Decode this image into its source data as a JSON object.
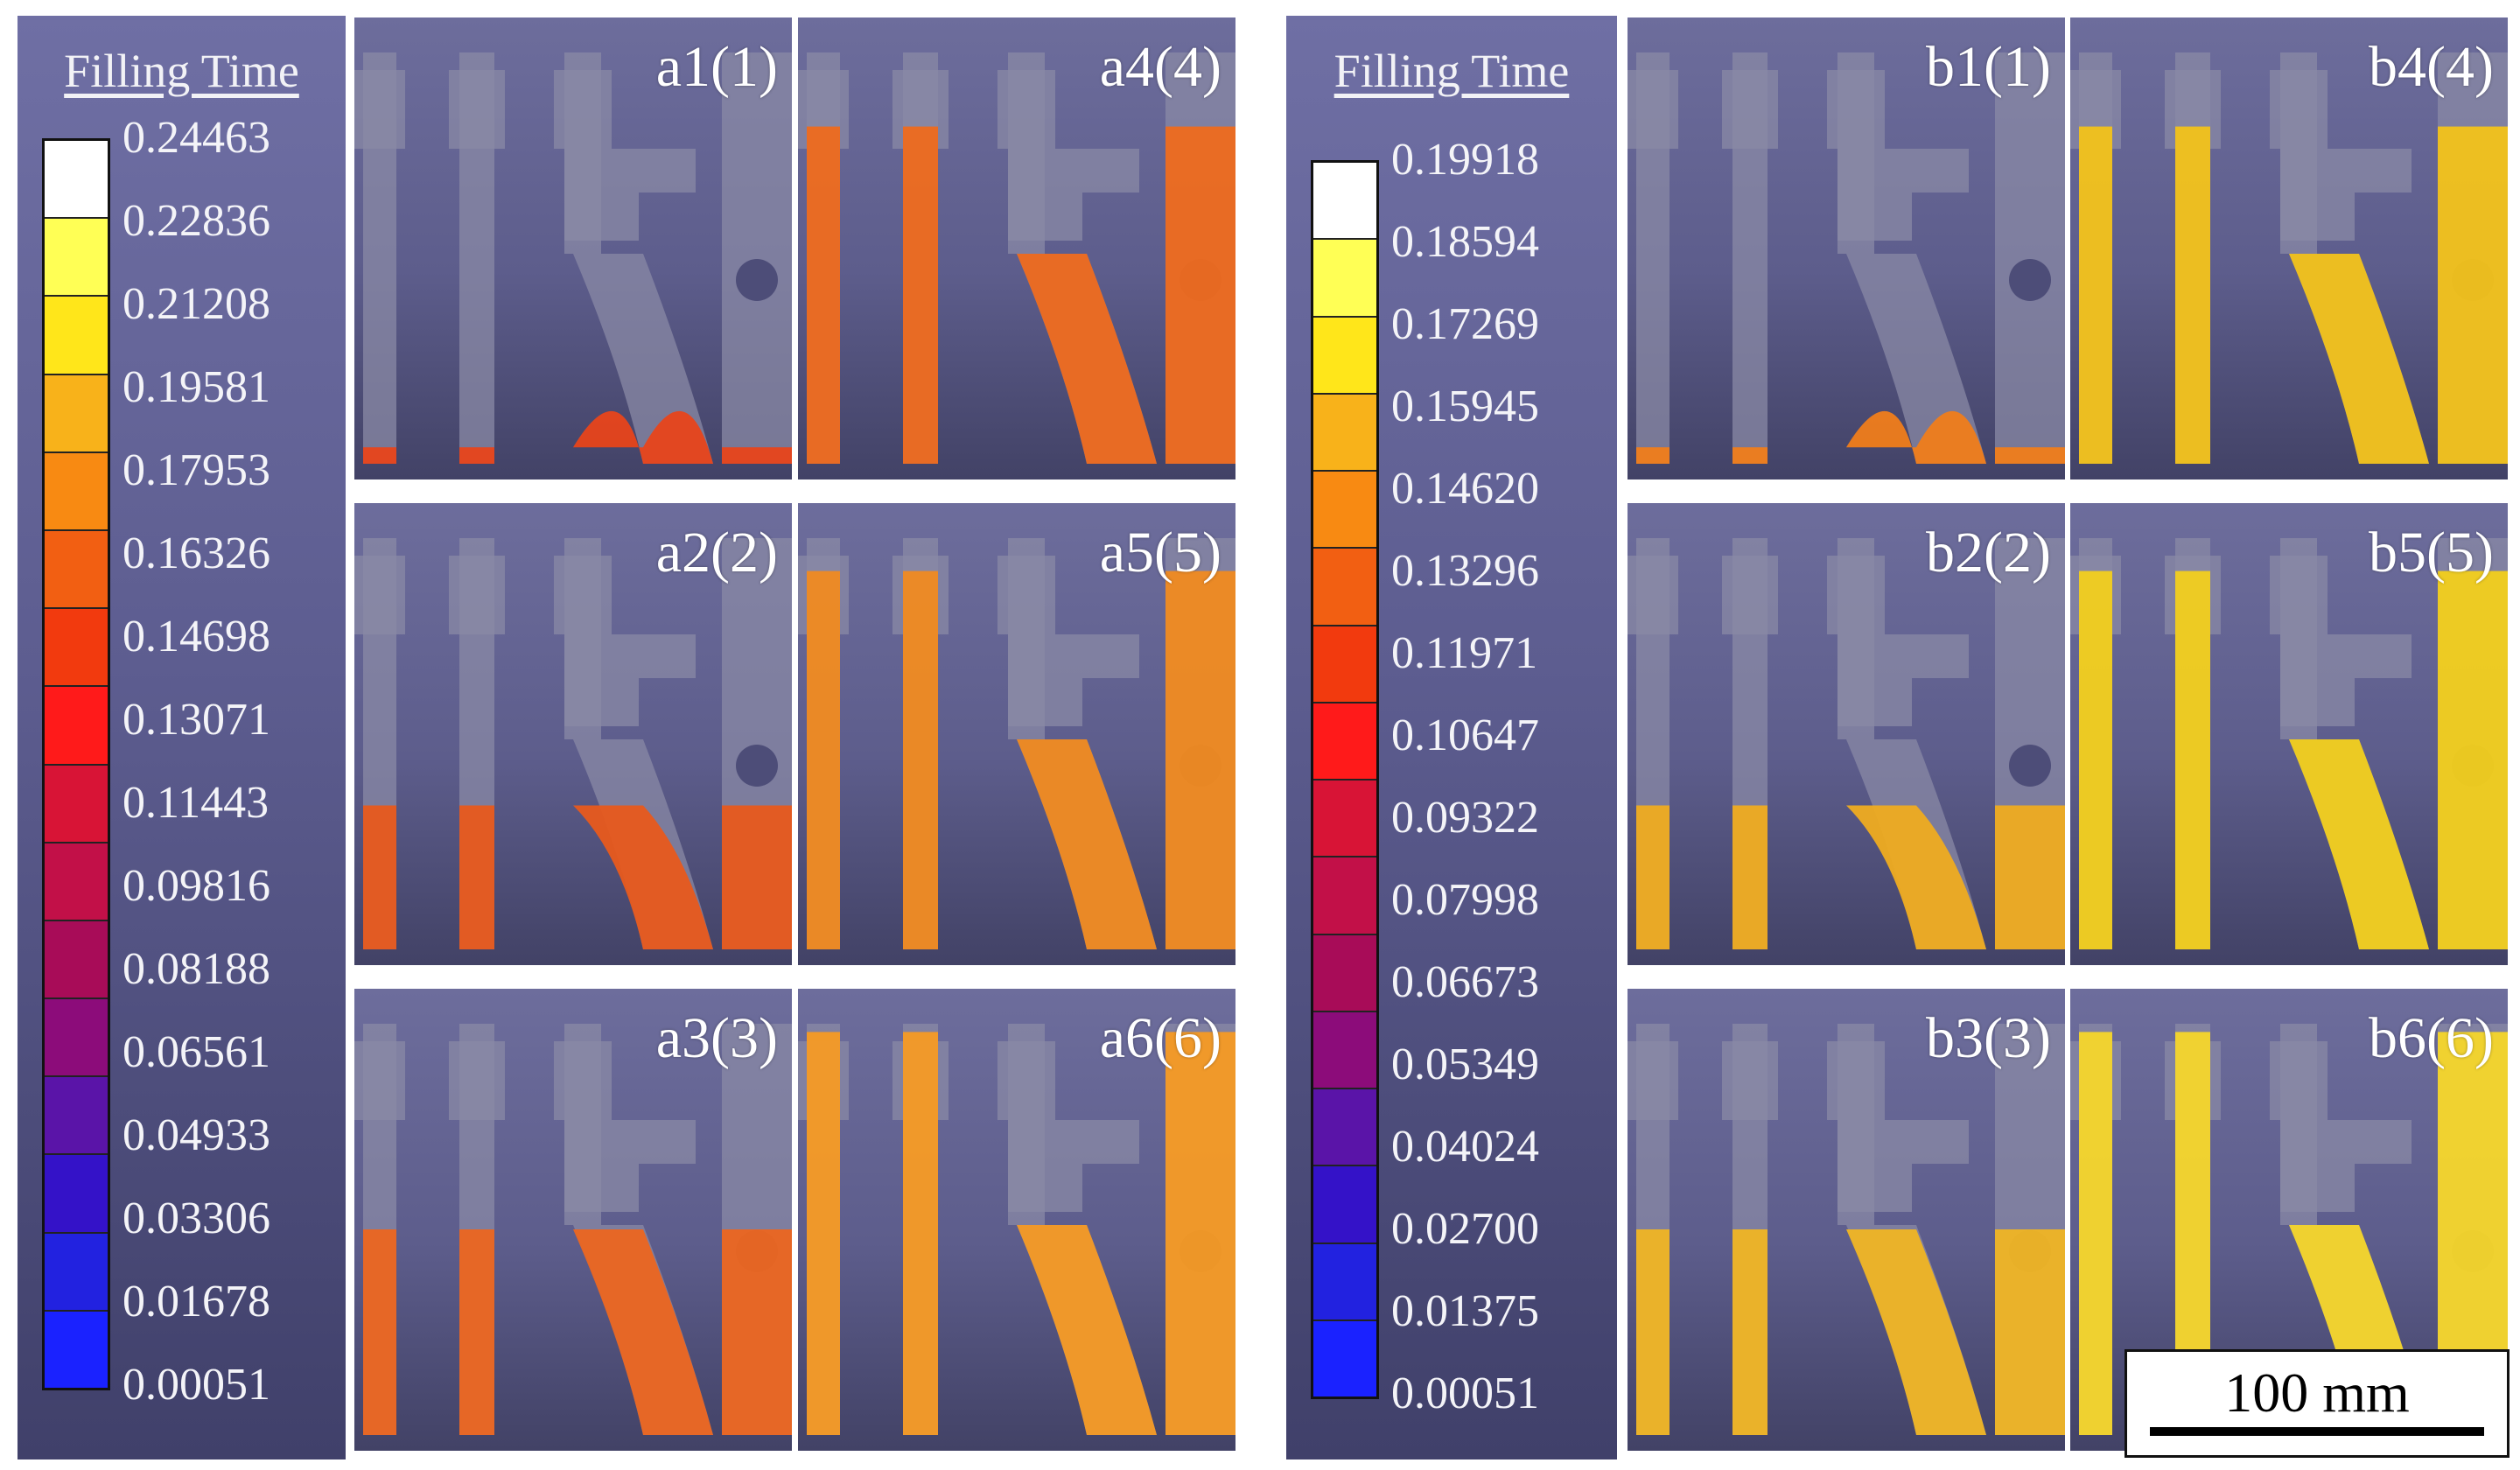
{
  "group_a": {
    "legend": {
      "title": "Filling Time",
      "ticks": [
        "0.24463",
        "0.22836",
        "0.21208",
        "0.19581",
        "0.17953",
        "0.16326",
        "0.14698",
        "0.13071",
        "0.11443",
        "0.09816",
        "0.08188",
        "0.06561",
        "0.04933",
        "0.03306",
        "0.01678",
        "0.00051"
      ]
    },
    "panels": [
      {
        "label": "a1(1)",
        "fill_color": "#e8451a"
      },
      {
        "label": "a4(4)",
        "fill_color": "#ee6a1e"
      },
      {
        "label": "a2(2)",
        "fill_color": "#e85a1c"
      },
      {
        "label": "a5(5)",
        "fill_color": "#f08a20"
      },
      {
        "label": "a3(3)",
        "fill_color": "#ec6620"
      },
      {
        "label": "a6(6)",
        "fill_color": "#f59a24"
      }
    ]
  },
  "group_b": {
    "legend": {
      "title": "Filling Time",
      "ticks": [
        "0.19918",
        "0.18594",
        "0.17269",
        "0.15945",
        "0.14620",
        "0.13296",
        "0.11971",
        "0.10647",
        "0.09322",
        "0.07998",
        "0.06673",
        "0.05349",
        "0.04024",
        "0.02700",
        "0.01375",
        "0.00051"
      ]
    },
    "panels": [
      {
        "label": "b1(1)",
        "fill_color": "#f07d1a"
      },
      {
        "label": "b4(4)",
        "fill_color": "#f2c21a"
      },
      {
        "label": "b2(2)",
        "fill_color": "#efac20"
      },
      {
        "label": "b5(5)",
        "fill_color": "#f2cf1c"
      },
      {
        "label": "b3(3)",
        "fill_color": "#f0b524"
      },
      {
        "label": "b6(6)",
        "fill_color": "#f5d62a"
      }
    ]
  },
  "colormap": [
    "#ffffff",
    "#ffff55",
    "#ffe61a",
    "#f8b21a",
    "#f88a12",
    "#f25f12",
    "#f23a0e",
    "#ff1a1a",
    "#d81436",
    "#c21048",
    "#a80c58",
    "#8c0c7a",
    "#5a14a8",
    "#3412c8",
    "#2222e0",
    "#1a22ff"
  ],
  "scale_bar": {
    "label": "100 mm"
  }
}
